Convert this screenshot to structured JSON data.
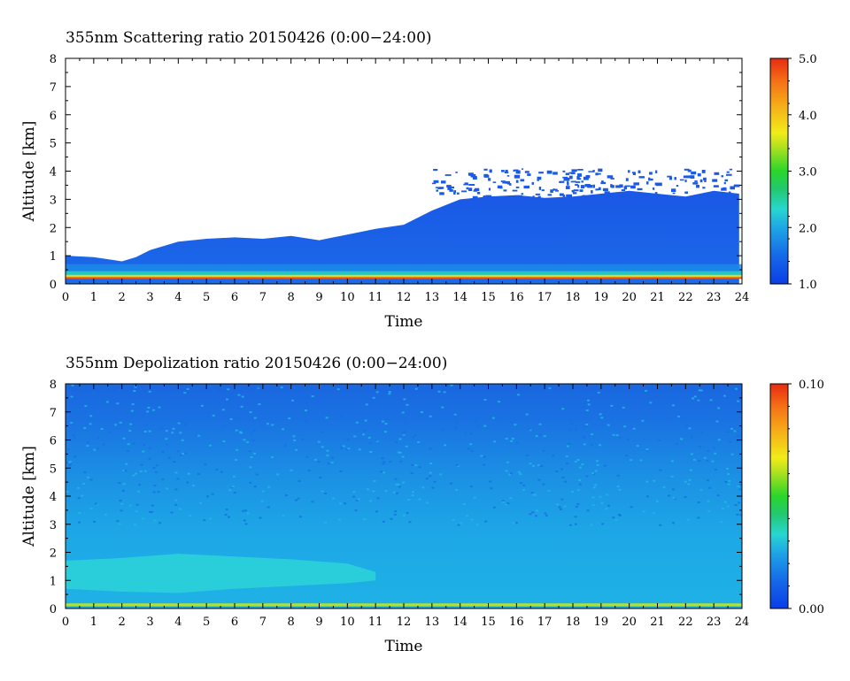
{
  "chart_data": [
    {
      "type": "heatmap",
      "title": "355nm Scattering ratio  20150426 (0:00−24:00)",
      "xlabel": "Time",
      "ylabel": "Altitude [km]",
      "xlim": [
        0,
        24
      ],
      "ylim": [
        0,
        8
      ],
      "xticks": [
        "0",
        "1",
        "2",
        "3",
        "4",
        "5",
        "6",
        "7",
        "8",
        "9",
        "10",
        "11",
        "12",
        "13",
        "14",
        "15",
        "16",
        "17",
        "18",
        "19",
        "20",
        "21",
        "22",
        "23",
        "24"
      ],
      "yticks": [
        "0",
        "1",
        "2",
        "3",
        "4",
        "5",
        "6",
        "7",
        "8"
      ],
      "colorbar": {
        "range": [
          1.0,
          5.0
        ],
        "ticks": [
          "1.0",
          "2.0",
          "3.0",
          "4.0",
          "5.0"
        ]
      },
      "aerosol_layer_top_km": {
        "time_h": [
          0,
          1,
          2,
          2.5,
          3,
          4,
          5,
          6,
          7,
          8,
          9,
          10,
          11,
          12,
          13,
          14,
          15,
          16,
          17,
          18,
          19,
          20,
          21,
          22,
          23,
          23.9
        ],
        "altitude": [
          1.0,
          0.95,
          0.8,
          0.95,
          1.2,
          1.5,
          1.6,
          1.65,
          1.6,
          1.7,
          1.55,
          1.75,
          1.95,
          2.1,
          2.6,
          3.0,
          3.1,
          3.15,
          3.05,
          3.1,
          3.2,
          3.3,
          3.2,
          3.1,
          3.3,
          3.2
        ]
      }
    },
    {
      "type": "heatmap",
      "title": "355nm Depolization ratio  20150426 (0:00−24:00)",
      "xlabel": "Time",
      "ylabel": "Altitude [km]",
      "xlim": [
        0,
        24
      ],
      "ylim": [
        0,
        8
      ],
      "xticks": [
        "0",
        "1",
        "2",
        "3",
        "4",
        "5",
        "6",
        "7",
        "8",
        "9",
        "10",
        "11",
        "12",
        "13",
        "14",
        "15",
        "16",
        "17",
        "18",
        "19",
        "20",
        "21",
        "22",
        "23",
        "24"
      ],
      "yticks": [
        "0",
        "1",
        "2",
        "3",
        "4",
        "5",
        "6",
        "7",
        "8"
      ],
      "colorbar": {
        "range": [
          0.0,
          0.1
        ],
        "ticks": [
          "0.00",
          "0.10"
        ]
      },
      "dust_layer_km": {
        "time_h": [
          0,
          2,
          4,
          6,
          8,
          10,
          11
        ],
        "bottom": [
          0.7,
          0.6,
          0.55,
          0.7,
          0.8,
          0.9,
          1.0
        ],
        "top": [
          1.7,
          1.8,
          1.95,
          1.85,
          1.75,
          1.6,
          1.3
        ]
      }
    }
  ]
}
